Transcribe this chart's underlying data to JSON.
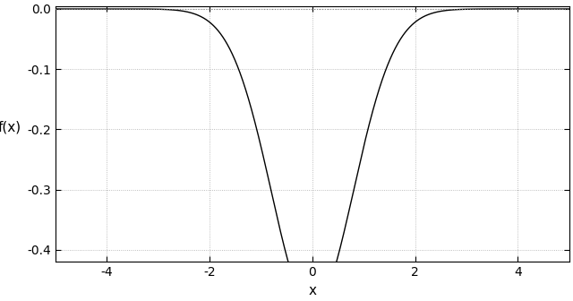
{
  "title": "",
  "xlabel": "x",
  "ylabel": "f(x)",
  "xlim": [
    -5.0,
    5.0
  ],
  "ylim": [
    -0.42,
    0.005
  ],
  "xticks": [
    -4,
    -2,
    0,
    2,
    4
  ],
  "yticks": [
    0.0,
    -0.1,
    -0.2,
    -0.3,
    -0.4
  ],
  "line_color": "#000000",
  "hline_color": "#888888",
  "hline_style": "dotted",
  "hline_y": 0.0,
  "grid_color": "#aaaaaa",
  "grid_style": "dotted",
  "background_color": "#ffffff",
  "x_range": [
    -5,
    5
  ],
  "n_points": 2000,
  "sigma": 0.8
}
